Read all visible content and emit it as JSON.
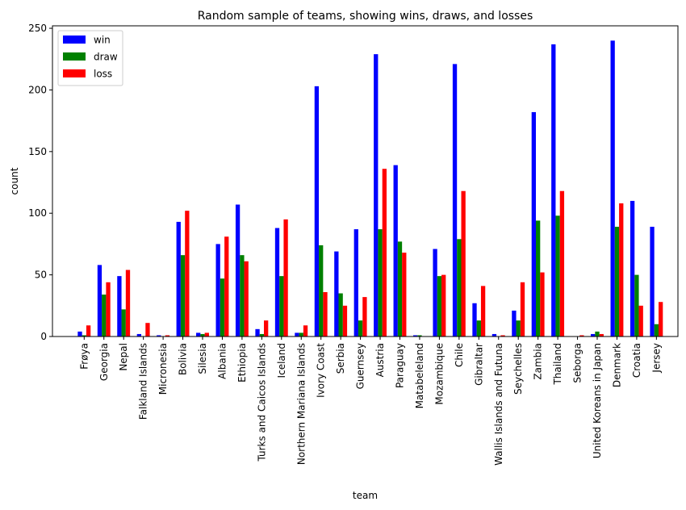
{
  "chart_data": {
    "type": "bar",
    "title": "Random sample of teams, showing wins, draws, and losses",
    "xlabel": "team",
    "ylabel": "count",
    "ylim": [
      0,
      252
    ],
    "yticks": [
      0,
      50,
      100,
      150,
      200,
      250
    ],
    "grid": false,
    "legend_position": "top-left",
    "categories": [
      "Frøya",
      "Georgia",
      "Nepal",
      "Falkland Islands",
      "Micronesia",
      "Bolivia",
      "Silesia",
      "Albania",
      "Ethiopia",
      "Turks and Caicos Islands",
      "Iceland",
      "Northern Mariana Islands",
      "Ivory Coast",
      "Serbia",
      "Guernsey",
      "Austria",
      "Paraguay",
      "Matabeleland",
      "Mozambique",
      "Chile",
      "Gibraltar",
      "Wallis Islands and Futuna",
      "Seychelles",
      "Zambia",
      "Thailand",
      "Seborga",
      "United Koreans in Japan",
      "Denmark",
      "Croatia",
      "Jersey"
    ],
    "series": [
      {
        "name": "win",
        "color": "#0000ff",
        "values": [
          4,
          58,
          49,
          2,
          1,
          93,
          3,
          75,
          107,
          6,
          88,
          3,
          203,
          69,
          87,
          229,
          139,
          1,
          71,
          221,
          27,
          2,
          21,
          182,
          237,
          0,
          2,
          240,
          110,
          89
        ]
      },
      {
        "name": "draw",
        "color": "#008000",
        "values": [
          1,
          34,
          22,
          0,
          0,
          66,
          2,
          47,
          66,
          2,
          49,
          3,
          74,
          35,
          13,
          87,
          77,
          1,
          49,
          79,
          13,
          0,
          13,
          94,
          98,
          0,
          4,
          89,
          50,
          10
        ]
      },
      {
        "name": "loss",
        "color": "#ff0000",
        "values": [
          9,
          44,
          54,
          11,
          1,
          102,
          3,
          81,
          61,
          13,
          95,
          9,
          36,
          25,
          32,
          136,
          68,
          0,
          50,
          118,
          41,
          1,
          44,
          52,
          118,
          1,
          2,
          108,
          25,
          28
        ]
      }
    ]
  }
}
